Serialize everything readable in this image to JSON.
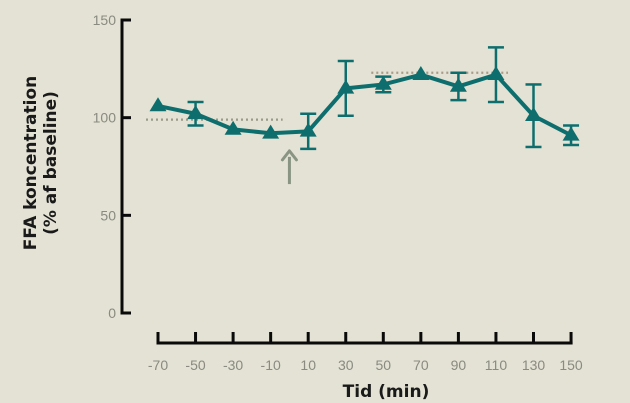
{
  "chart_data": {
    "type": "line",
    "xlabel": "Tid (min)",
    "ylabel_line1": "FFA koncentration",
    "ylabel_line2": "(% af baseline)",
    "x": [
      -70,
      -50,
      -30,
      -10,
      10,
      30,
      50,
      70,
      90,
      110,
      130,
      150
    ],
    "x_tick_labels": [
      "-70",
      "-50",
      "-30",
      "-10",
      "10",
      "30",
      "50",
      "70",
      "90",
      "110",
      "130",
      "150"
    ],
    "y_ticks": [
      0,
      50,
      100,
      150
    ],
    "ylim": [
      0,
      150
    ],
    "series": [
      {
        "values": [
          106,
          102,
          94,
          92,
          93,
          115,
          117,
          122,
          116,
          122,
          101,
          91
        ],
        "error": [
          null,
          6,
          null,
          null,
          9,
          14,
          4,
          null,
          7,
          14,
          16,
          5
        ],
        "marker": "triangle",
        "color": "#0e6e6e"
      }
    ],
    "reference_lines": [
      {
        "x_start": -70,
        "x_end": -10,
        "y": 99,
        "style": "dotted",
        "color": "#9a9a88"
      },
      {
        "x_start": 50,
        "x_end": 110,
        "y": 123,
        "style": "dotted",
        "color": "#a89a88"
      }
    ],
    "annotation": {
      "type": "arrow-up",
      "x": 0,
      "y_from": 66,
      "y_to": 83,
      "color": "#8a9482"
    },
    "grid": false,
    "legend": "none"
  }
}
